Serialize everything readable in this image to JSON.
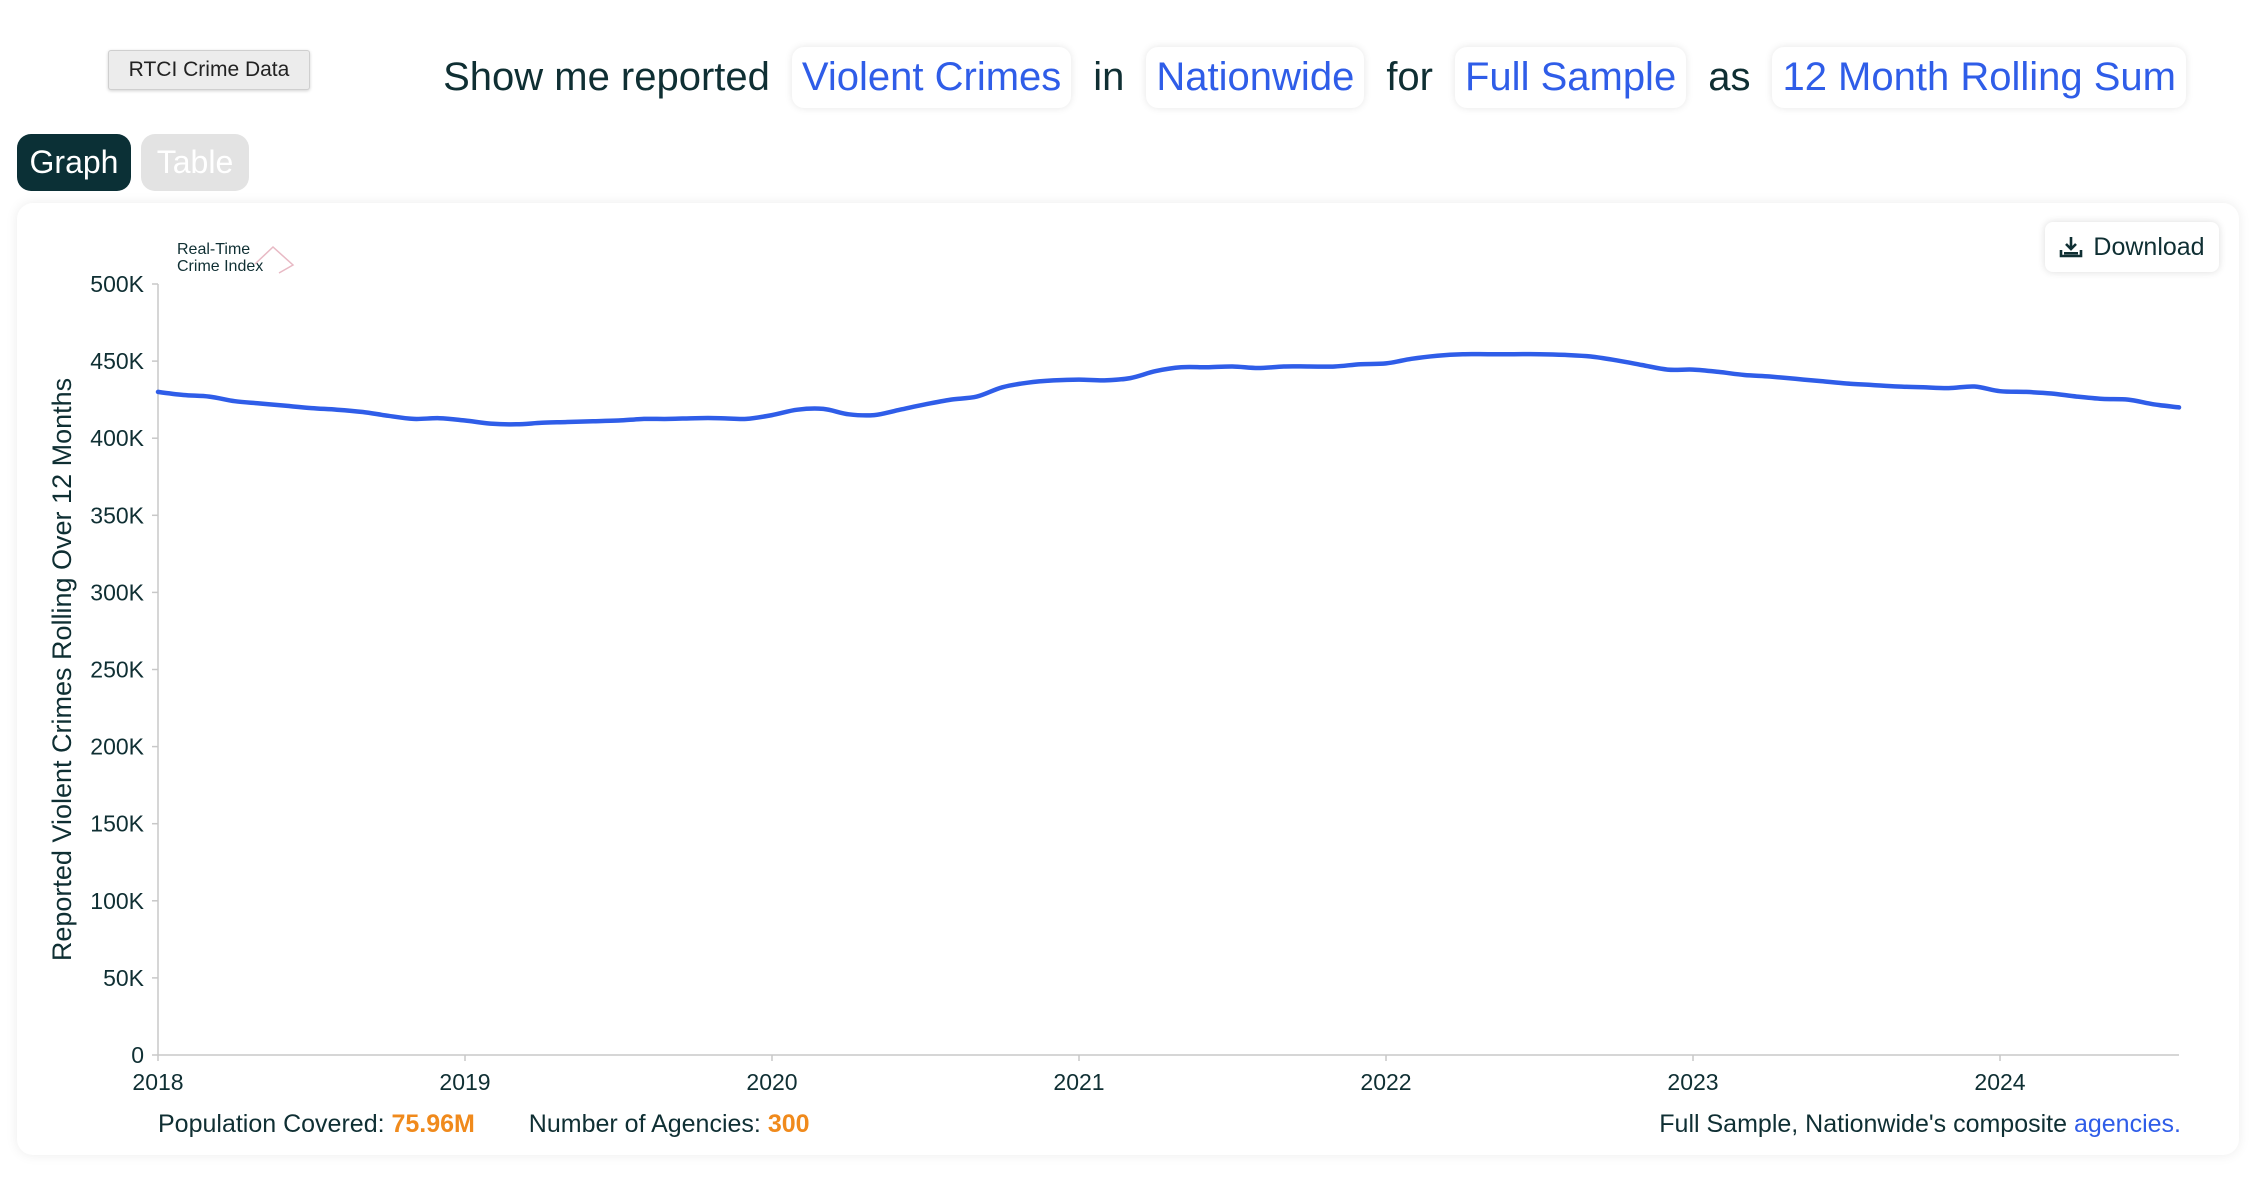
{
  "tag": "RTCI Crime Data",
  "query": {
    "prefix": "Show me reported",
    "crime": "Violent Crimes",
    "w_in": "in",
    "region": "Nationwide",
    "w_for": "for",
    "sample": "Full Sample",
    "w_as": "as",
    "measure": "12 Month Rolling Sum"
  },
  "tabs": {
    "graph": "Graph",
    "table": "Table"
  },
  "download_label": "Download",
  "logo": {
    "line1": "Real-Time",
    "line2": "Crime Index"
  },
  "footer": {
    "population_label": "Population Covered:",
    "population_value": "75.96M",
    "agencies_label": "Number of Agencies:",
    "agencies_value": "300",
    "composite_text": "Full Sample, Nationwide's composite",
    "agencies_link": "agencies."
  },
  "colors": {
    "line": "#2f5de8",
    "accent": "#f08a1c",
    "dark": "#0b3036"
  },
  "chart_data": {
    "type": "line",
    "ylabel": "Reported Violent Crimes Rolling Over 12 Months",
    "xlabel": "",
    "ylim": [
      0,
      500000
    ],
    "xlim": [
      2018.0,
      2024.583
    ],
    "y_ticks": [
      0,
      50000,
      100000,
      150000,
      200000,
      250000,
      300000,
      350000,
      400000,
      450000,
      500000
    ],
    "y_tick_labels": [
      "0",
      "50K",
      "100K",
      "150K",
      "200K",
      "250K",
      "300K",
      "350K",
      "400K",
      "450K",
      "500K"
    ],
    "x_ticks": [
      2018,
      2019,
      2020,
      2021,
      2022,
      2023,
      2024
    ],
    "x_tick_labels": [
      "2018",
      "2019",
      "2020",
      "2021",
      "2022",
      "2023",
      "2024"
    ],
    "grid": false,
    "series": [
      {
        "values_x": [
          2018.0,
          2018.083,
          2018.167,
          2018.25,
          2018.333,
          2018.417,
          2018.5,
          2018.583,
          2018.667,
          2018.75,
          2018.833,
          2018.917,
          2019.0,
          2019.083,
          2019.167,
          2019.25,
          2019.333,
          2019.417,
          2019.5,
          2019.583,
          2019.667,
          2019.75,
          2019.833,
          2019.917,
          2020.0,
          2020.083,
          2020.167,
          2020.25,
          2020.333,
          2020.417,
          2020.5,
          2020.583,
          2020.667,
          2020.75,
          2020.833,
          2020.917,
          2021.0,
          2021.083,
          2021.167,
          2021.25,
          2021.333,
          2021.417,
          2021.5,
          2021.583,
          2021.667,
          2021.75,
          2021.833,
          2021.917,
          2022.0,
          2022.083,
          2022.167,
          2022.25,
          2022.333,
          2022.417,
          2022.5,
          2022.583,
          2022.667,
          2022.75,
          2022.833,
          2022.917,
          2023.0,
          2023.083,
          2023.167,
          2023.25,
          2023.333,
          2023.417,
          2023.5,
          2023.583,
          2023.667,
          2023.75,
          2023.833,
          2023.917,
          2024.0,
          2024.083,
          2024.167,
          2024.25,
          2024.333,
          2024.417,
          2024.5,
          2024.583
        ],
        "values": [
          430000,
          428000,
          427000,
          424000,
          422500,
          421000,
          419500,
          418500,
          417000,
          414500,
          412500,
          413000,
          411500,
          409500,
          409000,
          410000,
          410500,
          411000,
          411500,
          412500,
          412500,
          413000,
          413000,
          412500,
          415000,
          418500,
          419000,
          415500,
          415000,
          418500,
          422000,
          425000,
          427000,
          433000,
          436000,
          437500,
          438000,
          437500,
          439000,
          443500,
          446000,
          446000,
          446500,
          445500,
          446500,
          446500,
          446500,
          448000,
          448500,
          451500,
          453500,
          454500,
          454500,
          454500,
          454500,
          454000,
          453000,
          450500,
          447500,
          444500,
          444500,
          443000,
          441000,
          440000,
          438500,
          437000,
          435500,
          434500,
          433500,
          433000,
          432500,
          433500,
          430500,
          430000,
          429000,
          427000,
          425500,
          425000,
          422000,
          420000
        ]
      }
    ]
  }
}
